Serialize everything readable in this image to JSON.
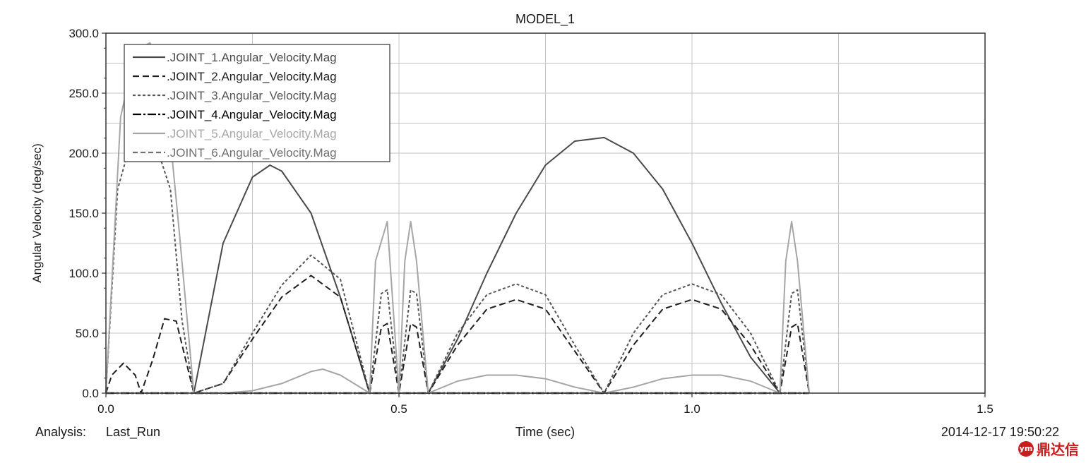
{
  "chart_data": {
    "type": "line",
    "title": "MODEL_1",
    "xlabel": "Time (sec)",
    "ylabel": "Angular Velocity (deg/sec)",
    "xlim": [
      0,
      1.5
    ],
    "ylim": [
      0,
      300
    ],
    "x_ticks": [
      "0.0",
      "0.5",
      "1.0",
      "1.5"
    ],
    "y_ticks": [
      "0.0",
      "50.0",
      "100.0",
      "150.0",
      "200.0",
      "250.0",
      "300.0"
    ],
    "grid": true,
    "legend_position": "top-left",
    "series": [
      {
        "name": ".JOINT_1.Angular_Velocity.Mag",
        "color": "#4a4a4a",
        "dash": "solid",
        "x": [
          0.15,
          0.2,
          0.25,
          0.28,
          0.3,
          0.35,
          0.4,
          0.45,
          0.55,
          0.6,
          0.65,
          0.7,
          0.75,
          0.8,
          0.85,
          0.9,
          0.95,
          1.0,
          1.05,
          1.1,
          1.15
        ],
        "y": [
          0,
          125,
          180,
          190,
          185,
          150,
          80,
          0,
          0,
          45,
          100,
          150,
          190,
          210,
          213,
          200,
          170,
          125,
          75,
          30,
          0
        ]
      },
      {
        "name": ".JOINT_2.Angular_Velocity.Mag",
        "color": "#1e1e1e",
        "dash": "9,5",
        "x": [
          0,
          0.01,
          0.03,
          0.05,
          0.06,
          0.08,
          0.1,
          0.12,
          0.15,
          0.2,
          0.25,
          0.3,
          0.35,
          0.4,
          0.45,
          0.47,
          0.48,
          0.5,
          0.52,
          0.53,
          0.55,
          0.6,
          0.65,
          0.7,
          0.75,
          0.8,
          0.85,
          0.9,
          0.95,
          1.0,
          1.05,
          1.1,
          1.15,
          1.17,
          1.18,
          1.2
        ],
        "y": [
          0,
          15,
          25,
          15,
          0,
          28,
          62,
          60,
          0,
          8,
          45,
          80,
          98,
          80,
          0,
          55,
          58,
          0,
          58,
          55,
          0,
          40,
          70,
          78,
          70,
          35,
          0,
          40,
          70,
          78,
          70,
          40,
          0,
          55,
          58,
          0
        ]
      },
      {
        "name": ".JOINT_3.Angular_Velocity.Mag",
        "color": "#555555",
        "dash": "4,3",
        "x": [
          0,
          0.02,
          0.05,
          0.08,
          0.11,
          0.13,
          0.15,
          0.2,
          0.25,
          0.3,
          0.35,
          0.4,
          0.45,
          0.47,
          0.48,
          0.5,
          0.52,
          0.53,
          0.55,
          0.6,
          0.65,
          0.7,
          0.75,
          0.8,
          0.85,
          0.9,
          0.95,
          1.0,
          1.05,
          1.1,
          1.15,
          1.17,
          1.18,
          1.2
        ],
        "y": [
          0,
          170,
          222,
          215,
          170,
          60,
          0,
          8,
          50,
          90,
          115,
          95,
          0,
          83,
          86,
          0,
          86,
          83,
          0,
          50,
          82,
          91,
          82,
          40,
          0,
          50,
          82,
          91,
          82,
          50,
          0,
          83,
          86,
          0
        ]
      },
      {
        "name": ".JOINT_4.Angular_Velocity.Mag",
        "color": "#000000",
        "dash": "12,3,3,3",
        "x": [
          0,
          1.2
        ],
        "y": [
          0,
          0
        ]
      },
      {
        "name": ".JOINT_5.Angular_Velocity.Mag",
        "color": "#a6a6a6",
        "dash": "solid",
        "x": [
          0,
          0.025,
          0.05,
          0.075,
          0.1,
          0.125,
          0.15,
          0.2,
          0.25,
          0.3,
          0.35,
          0.37,
          0.4,
          0.45,
          0.46,
          0.48,
          0.5,
          0.51,
          0.52,
          0.53,
          0.55,
          0.6,
          0.65,
          0.7,
          0.75,
          0.8,
          0.85,
          0.9,
          0.95,
          1.0,
          1.05,
          1.1,
          1.15,
          1.16,
          1.17,
          1.18,
          1.2
        ],
        "y": [
          0,
          230,
          285,
          292,
          262,
          135,
          0,
          0,
          2,
          8,
          18,
          20,
          15,
          0,
          110,
          143,
          0,
          110,
          143,
          110,
          0,
          10,
          15,
          15,
          12,
          5,
          0,
          5,
          12,
          15,
          15,
          10,
          0,
          110,
          143,
          110,
          0
        ]
      },
      {
        "name": ".JOINT_6.Angular_Velocity.Mag",
        "color": "#707070",
        "dash": "7,4",
        "x": [
          0,
          1.2
        ],
        "y": [
          0,
          0
        ]
      }
    ],
    "analysis_label": "Analysis:",
    "analysis_value": "Last_Run",
    "timestamp": "2014-12-17 19:50:22"
  },
  "watermark": {
    "logo": "ym",
    "text": "鼎达信"
  }
}
